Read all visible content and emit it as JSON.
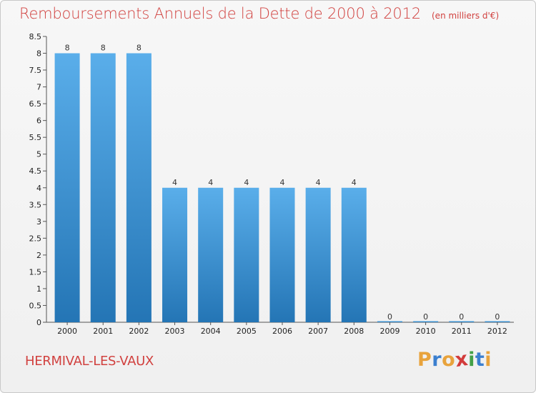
{
  "chart_data": {
    "type": "bar",
    "title": "Remboursements Annuels de la Dette de 2000 à 2012",
    "subtitle": "(en milliers d'€)",
    "categories": [
      "2000",
      "2001",
      "2002",
      "2003",
      "2004",
      "2005",
      "2006",
      "2007",
      "2008",
      "2009",
      "2010",
      "2011",
      "2012"
    ],
    "values": [
      8,
      8,
      8,
      4,
      4,
      4,
      4,
      4,
      4,
      0,
      0,
      0,
      0
    ],
    "data_labels": [
      "8",
      "8",
      "8",
      "4",
      "4",
      "4",
      "4",
      "4",
      "4",
      "0",
      "0",
      "0",
      "0"
    ],
    "ylim": [
      0,
      8.5
    ],
    "yticks": [
      "0",
      "0.5",
      "1",
      "1.5",
      "2",
      "2.5",
      "3",
      "3.5",
      "4",
      "4.5",
      "5",
      "5.5",
      "6",
      "6.5",
      "7",
      "7.5",
      "8",
      "8.5"
    ],
    "xlabel": "",
    "ylabel": "",
    "grid": false,
    "legend": "none",
    "bar_color_top": "#5aaeea",
    "bar_color_bottom": "#2475b5"
  },
  "footer": {
    "commune": "HERMIVAL-LES-VAUX",
    "logo_letters": [
      "P",
      "r",
      "o",
      "x",
      "i",
      "t",
      "i"
    ],
    "logo_colors": [
      "#e8a33c",
      "#3b7fcf",
      "#e8a33c",
      "#d23b3b",
      "#43a047",
      "#3b7fcf",
      "#e8a33c"
    ]
  },
  "colors": {
    "title": "#d1413f",
    "axis": "#555555",
    "background": "#f2f2f2"
  }
}
